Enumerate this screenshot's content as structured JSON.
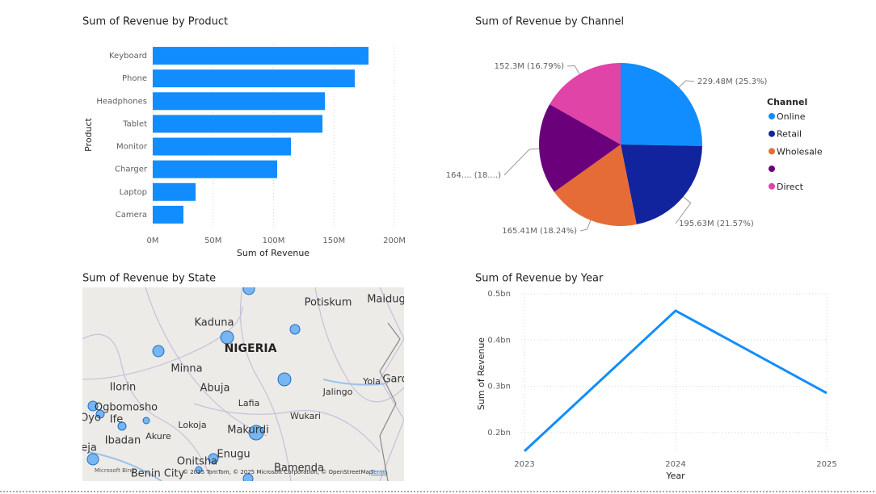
{
  "chart_data": [
    {
      "type": "bar",
      "title": "Sum of Revenue by Product",
      "x_label": "Sum of Revenue",
      "y_label": "Product",
      "categories": [
        "Keyboard",
        "Phone",
        "Headphones",
        "Tablet",
        "Monitor",
        "Charger",
        "Laptop",
        "Camera"
      ],
      "values": [
        178.6,
        167.2,
        142.5,
        140.5,
        114.4,
        103.0,
        35.5,
        25.4
      ],
      "color": "#118dff",
      "xlim": [
        0,
        200
      ],
      "xticks": [
        {
          "value": 0,
          "label": "0M"
        },
        {
          "value": 50,
          "label": "50M"
        },
        {
          "value": 100,
          "label": "100M"
        },
        {
          "value": 150,
          "label": "150M"
        },
        {
          "value": 200,
          "label": "200M"
        }
      ],
      "grid": true
    },
    {
      "type": "pie",
      "title": "Sum of Revenue by Channel",
      "legend_title": "Channel",
      "legend": "right",
      "series": [
        {
          "name": "Online",
          "color": "#118dff",
          "values": [
            229.48
          ],
          "value_labels": [
            "229.48M (25.3%)"
          ]
        },
        {
          "name": "Retail",
          "color": "#12239e",
          "values": [
            195.63
          ],
          "value_labels": [
            "195.63M (21.57%)"
          ]
        },
        {
          "name": "Wholesale",
          "color": "#e66c37",
          "values": [
            165.41
          ],
          "value_labels": [
            "165.41M (18.24%)"
          ]
        },
        {
          "name": null,
          "color": "#6b007b",
          "values": [
            164.2
          ],
          "value_labels": [
            "164.... (18....)"
          ]
        },
        {
          "name": "Direct",
          "color": "#e044a7",
          "values": [
            152.3
          ],
          "value_labels": [
            "152.3M (16.79%)"
          ]
        }
      ]
    },
    {
      "type": "line",
      "title": "Sum of Revenue by Year",
      "x_label": "Year",
      "y_label": "Sum of Revenue",
      "categories": [
        "2023",
        "2024",
        "2025"
      ],
      "series": [
        {
          "name": "Sum of Revenue",
          "color": "#118dff",
          "values": [
            0.16,
            0.4635,
            0.2855
          ]
        }
      ],
      "ylim": [
        0.158,
        0.5
      ],
      "yticks": [
        {
          "value": 0.2,
          "label": "0.2bn"
        },
        {
          "value": 0.3,
          "label": "0.3bn"
        },
        {
          "value": 0.4,
          "label": "0.4bn"
        },
        {
          "value": 0.5,
          "label": "0.5bn"
        }
      ],
      "grid": true
    }
  ],
  "map": {
    "title": "Sum of Revenue by State",
    "places": [
      "Potiskum",
      "Maidug",
      "Kaduna",
      "NIGERIA",
      "Minna",
      "Abuja",
      "Ilorin",
      "Yola",
      "Garo",
      "Jalingo",
      "Ogbomosho",
      "Lafia",
      "Oyo",
      "Ife",
      "Wukari",
      "Lokoja",
      "Makurdi",
      "Ibadan",
      "Akure",
      "Enugu",
      "Onitsha",
      "eja",
      "Benin City",
      "Bamenda"
    ],
    "brand": "Microsoft Bing",
    "attribution": "© 2025 TomTom, © 2025 Microsoft Corporation, © OpenStreetMap",
    "terms": "Terms"
  }
}
